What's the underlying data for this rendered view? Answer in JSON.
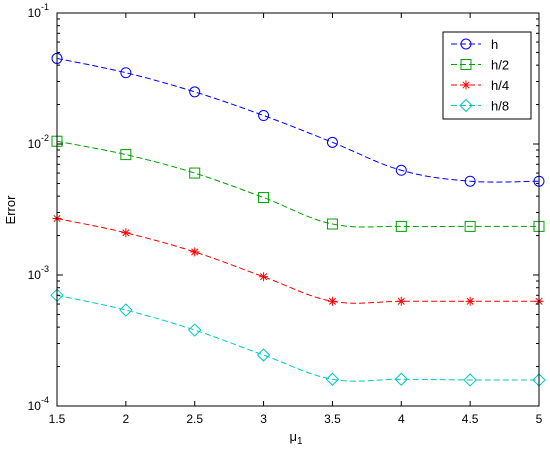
{
  "chart_data": {
    "type": "line",
    "title": "",
    "xlabel": "μ",
    "xlabel_subscript": "1",
    "ylabel": "Error",
    "xlim": [
      1.5,
      5
    ],
    "ylim": [
      0.0001,
      0.1
    ],
    "yscale": "log",
    "grid": false,
    "legend_position": "top-right",
    "x": [
      1.5,
      2,
      2.5,
      3,
      3.5,
      4,
      4.5,
      5
    ],
    "x_ticks": [
      "1.5",
      "2",
      "2.5",
      "3",
      "3.5",
      "4",
      "4.5",
      "5"
    ],
    "y_ticks": [
      {
        "value": 0.1,
        "base": "10",
        "exp": "-1"
      },
      {
        "value": 0.01,
        "base": "10",
        "exp": "-2"
      },
      {
        "value": 0.001,
        "base": "10",
        "exp": "-3"
      },
      {
        "value": 0.0001,
        "base": "10",
        "exp": "-4"
      }
    ],
    "series": [
      {
        "name": "h",
        "color": "#0000ff",
        "marker": "circle",
        "values": [
          0.045,
          0.035,
          0.025,
          0.0165,
          0.0103,
          0.0063,
          0.0052,
          0.0052
        ]
      },
      {
        "name": "h/2",
        "color": "#00a000",
        "marker": "square",
        "values": [
          0.0105,
          0.0083,
          0.006,
          0.0039,
          0.00245,
          0.00235,
          0.00235,
          0.00235
        ]
      },
      {
        "name": "h/4",
        "color": "#ff0000",
        "marker": "asterisk",
        "values": [
          0.0027,
          0.0021,
          0.0015,
          0.00097,
          0.00063,
          0.00063,
          0.00063,
          0.00063
        ]
      },
      {
        "name": "h/8",
        "color": "#00c8c8",
        "marker": "diamond",
        "values": [
          0.0007,
          0.00054,
          0.00038,
          0.000245,
          0.00016,
          0.00016,
          0.000158,
          0.000158
        ]
      }
    ]
  }
}
